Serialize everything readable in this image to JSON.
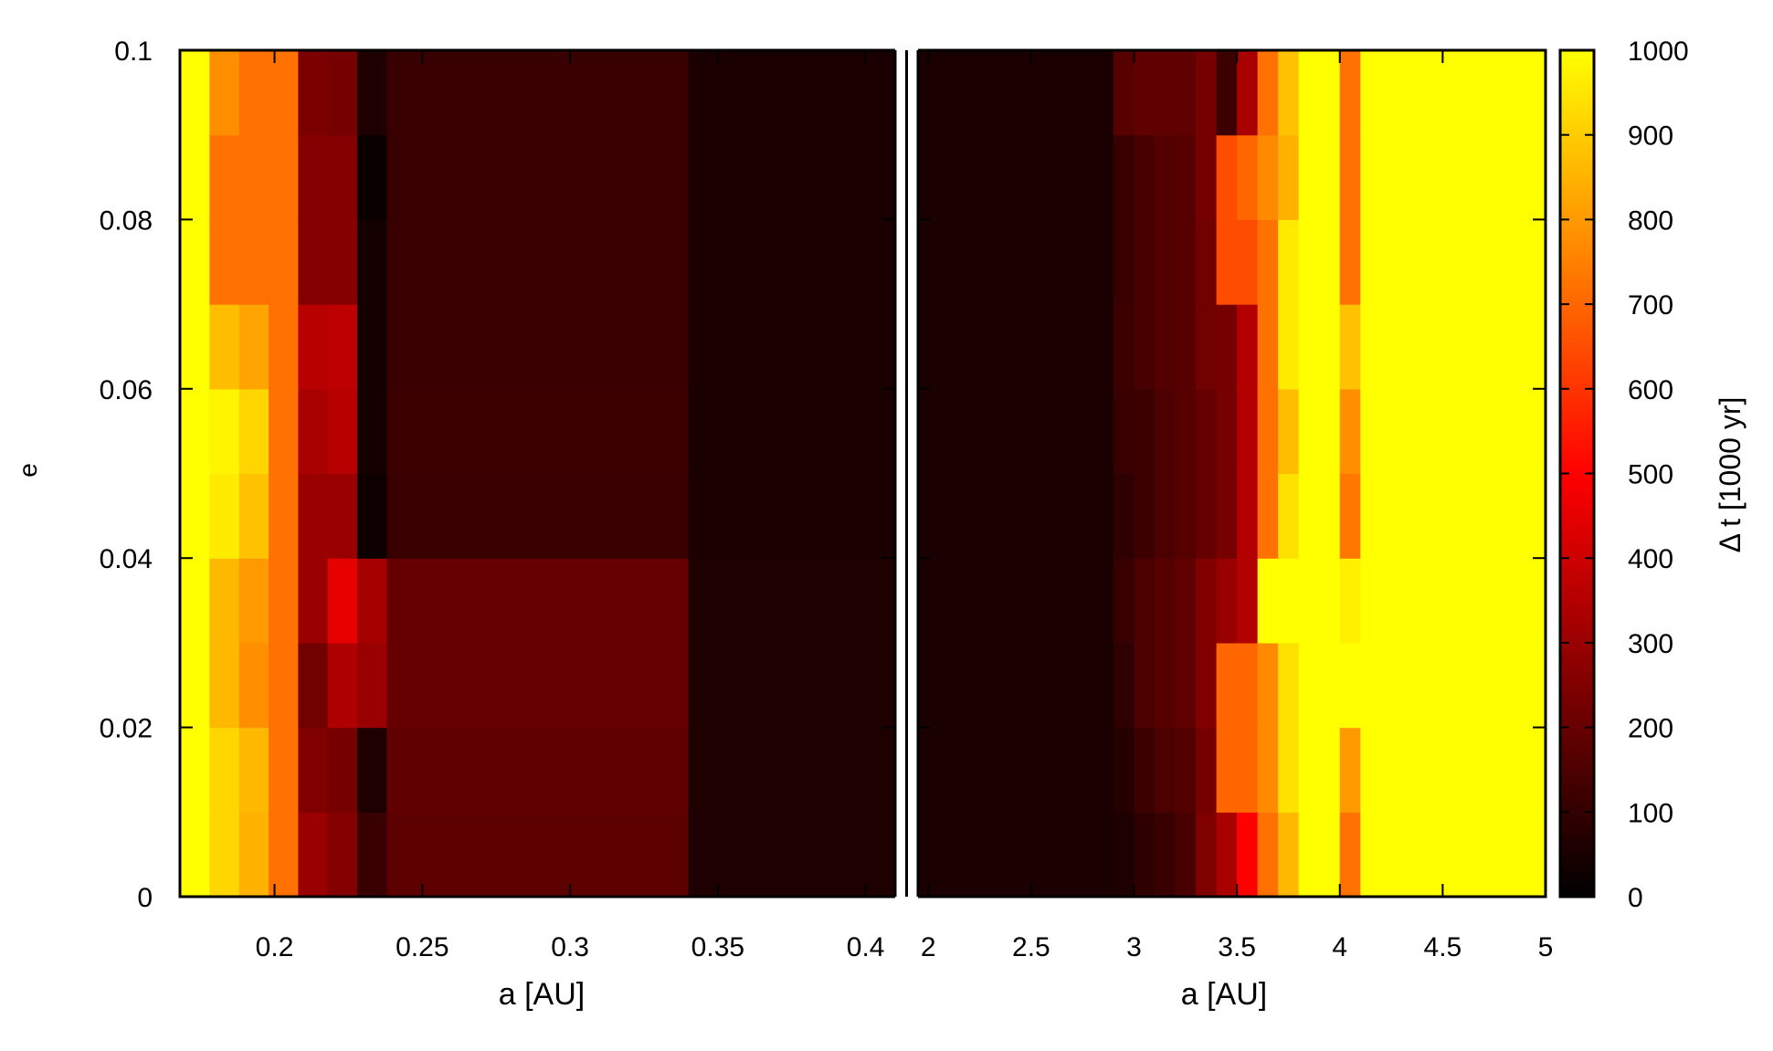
{
  "chart_data": {
    "type": "heatmap",
    "ylabel": "e",
    "y_ticks": [
      "0",
      "0.02",
      "0.04",
      "0.06",
      "0.08",
      "0.1"
    ],
    "ylim": [
      0,
      0.1
    ],
    "e_rows": [
      0.005,
      0.015,
      0.025,
      0.035,
      0.045,
      0.055,
      0.065,
      0.075,
      0.085,
      0.095
    ],
    "panels": [
      {
        "xlabel": "a [AU]",
        "xlim": [
          0.168,
          0.41
        ],
        "x_ticks": [
          "0.2",
          "0.25",
          "0.3",
          "0.35",
          "0.4"
        ],
        "x_tick_values": [
          0.2,
          0.25,
          0.3,
          0.35,
          0.4
        ],
        "columns": [
          {
            "a0": 0.168,
            "a1": 0.178,
            "dt": [
              1000,
              1000,
              1000,
              1000,
              1000,
              1000,
              1000,
              1000,
              1000,
              1000
            ]
          },
          {
            "a0": 0.178,
            "a1": 0.188,
            "dt": [
              920,
              920,
              860,
              860,
              960,
              980,
              870,
              720,
              720,
              780
            ]
          },
          {
            "a0": 0.188,
            "a1": 0.198,
            "dt": [
              850,
              860,
              780,
              800,
              880,
              920,
              820,
              720,
              720,
              720
            ]
          },
          {
            "a0": 0.198,
            "a1": 0.208,
            "dt": [
              720,
              720,
              720,
              720,
              720,
              720,
              720,
              720,
              720,
              720
            ]
          },
          {
            "a0": 0.208,
            "a1": 0.218,
            "dt": [
              300,
              250,
              220,
              300,
              300,
              330,
              360,
              260,
              260,
              240
            ]
          },
          {
            "a0": 0.218,
            "a1": 0.228,
            "dt": [
              260,
              230,
              340,
              450,
              300,
              360,
              370,
              260,
              260,
              230
            ]
          },
          {
            "a0": 0.228,
            "a1": 0.238,
            "dt": [
              110,
              60,
              300,
              320,
              30,
              40,
              40,
              40,
              20,
              60
            ]
          },
          {
            "a0": 0.238,
            "a1": 0.34,
            "dt": [
              180,
              190,
              200,
              200,
              110,
              120,
              110,
              110,
              110,
              110
            ]
          },
          {
            "a0": 0.34,
            "a1": 0.41,
            "dt": [
              60,
              60,
              60,
              60,
              50,
              50,
              50,
              50,
              50,
              50
            ]
          }
        ]
      },
      {
        "xlabel": "a [AU]",
        "xlim": [
          1.95,
          5.0
        ],
        "x_ticks": [
          "2",
          "2.5",
          "3",
          "3.5",
          "4",
          "4.5",
          "5"
        ],
        "x_tick_values": [
          2,
          2.5,
          3,
          3.5,
          4,
          4.5,
          5
        ],
        "columns": [
          {
            "a0": 1.95,
            "a1": 2.9,
            "dt": [
              50,
              50,
              50,
              50,
              50,
              50,
              50,
              50,
              50,
              50
            ]
          },
          {
            "a0": 2.9,
            "a1": 3.0,
            "dt": [
              60,
              70,
              90,
              110,
              90,
              110,
              120,
              110,
              110,
              170
            ]
          },
          {
            "a0": 3.0,
            "a1": 3.1,
            "dt": [
              90,
              120,
              150,
              150,
              120,
              120,
              140,
              140,
              140,
              190
            ]
          },
          {
            "a0": 3.1,
            "a1": 3.2,
            "dt": [
              110,
              150,
              170,
              170,
              150,
              150,
              160,
              160,
              160,
              190
            ]
          },
          {
            "a0": 3.2,
            "a1": 3.3,
            "dt": [
              140,
              160,
              190,
              190,
              170,
              170,
              170,
              170,
              170,
              190
            ]
          },
          {
            "a0": 3.3,
            "a1": 3.4,
            "dt": [
              250,
              230,
              250,
              250,
              200,
              200,
              220,
              220,
              230,
              230
            ]
          },
          {
            "a0": 3.4,
            "a1": 3.5,
            "dt": [
              330,
              700,
              700,
              300,
              230,
              230,
              230,
              650,
              650,
              120
            ]
          },
          {
            "a0": 3.5,
            "a1": 3.6,
            "dt": [
              500,
              700,
              700,
              350,
              350,
              350,
              350,
              650,
              700,
              330
            ]
          },
          {
            "a0": 3.6,
            "a1": 3.7,
            "dt": [
              720,
              770,
              770,
              1000,
              720,
              720,
              720,
              720,
              770,
              720
            ]
          },
          {
            "a0": 3.7,
            "a1": 3.8,
            "dt": [
              860,
              940,
              940,
              1000,
              940,
              870,
              960,
              960,
              850,
              880
            ]
          },
          {
            "a0": 3.8,
            "a1": 4.0,
            "dt": [
              1000,
              1000,
              1000,
              1000,
              1000,
              1000,
              1000,
              1000,
              1000,
              1000
            ]
          },
          {
            "a0": 4.0,
            "a1": 4.1,
            "dt": [
              720,
              800,
              1000,
              970,
              730,
              780,
              880,
              720,
              720,
              720
            ]
          },
          {
            "a0": 4.1,
            "a1": 5.0,
            "dt": [
              1000,
              1000,
              1000,
              1000,
              1000,
              1000,
              1000,
              1000,
              1000,
              1000
            ]
          }
        ]
      }
    ],
    "colorbar": {
      "label": "Δ t [1000 yr]",
      "range": [
        0,
        1000
      ],
      "ticks": [
        "0",
        "100",
        "200",
        "300",
        "400",
        "500",
        "600",
        "700",
        "800",
        "900",
        "1000"
      ],
      "tick_values": [
        0,
        100,
        200,
        300,
        400,
        500,
        600,
        700,
        800,
        900,
        1000
      ],
      "colormap": "gnuplot-hot",
      "stops": [
        "#000000",
        "#800000",
        "#ff0000",
        "#ff8000",
        "#ffff00"
      ]
    }
  }
}
